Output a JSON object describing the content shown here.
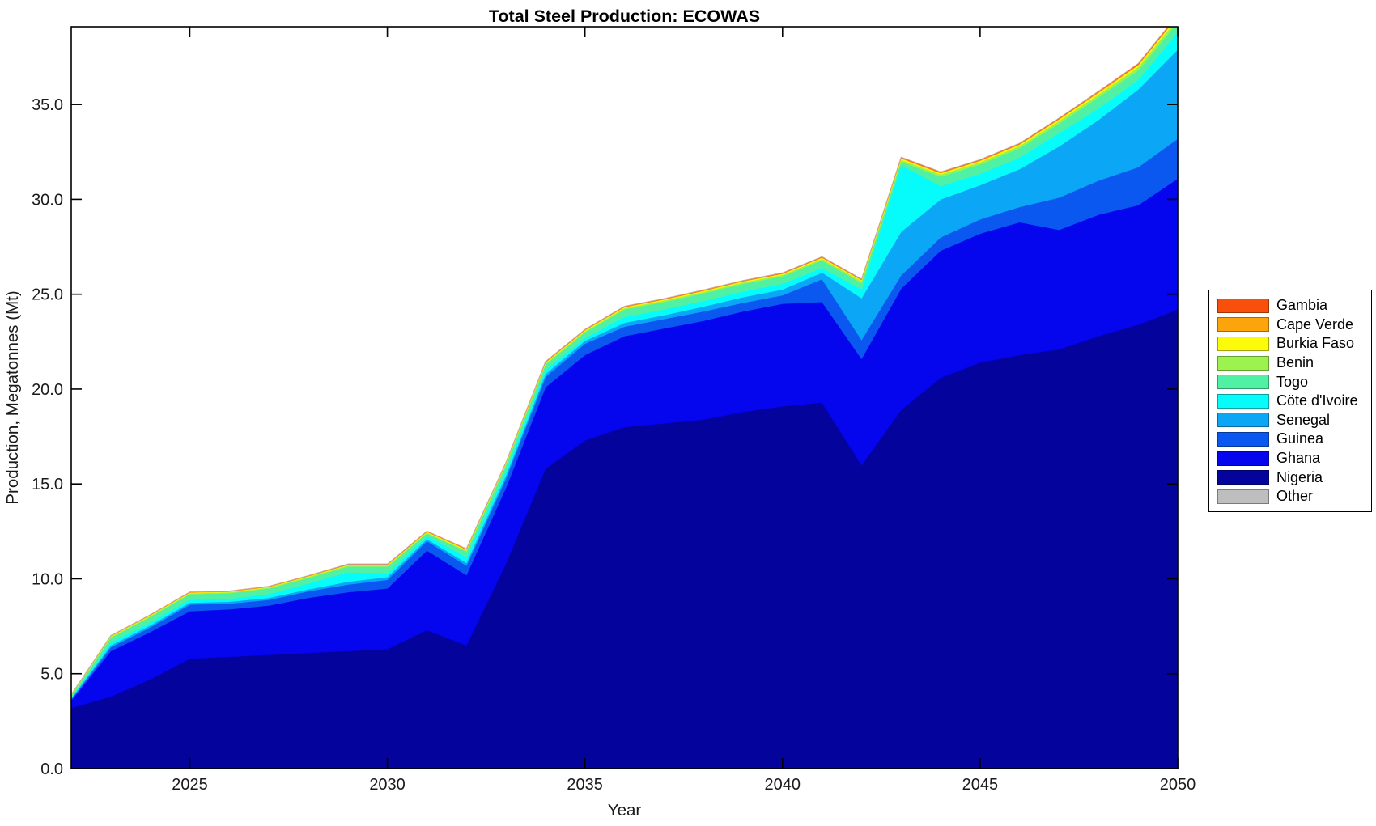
{
  "window": {
    "title": "Total Steel Production: ECOWAS"
  },
  "chart_data": {
    "type": "area",
    "stacked": true,
    "title": "Total Steel Production: ECOWAS",
    "xlabel": "Year",
    "ylabel": "Production, Megatonnes (Mt)",
    "background": "#FFFFFF",
    "axis_color": "#000000",
    "tick_label_color": "#1A1A1A",
    "grid": false,
    "xlim": [
      2022,
      2050
    ],
    "ylim": [
      0,
      39.1
    ],
    "x_ticks": [
      2025,
      2030,
      2035,
      2040,
      2045,
      2050
    ],
    "x_tick_labels": [
      "2025",
      "2030",
      "2035",
      "2040",
      "2045",
      "2050"
    ],
    "y_ticks": [
      0,
      5,
      10,
      15,
      20,
      25,
      30,
      35
    ],
    "y_tick_labels": [
      "0.0",
      "5.0",
      "10.0",
      "15.0",
      "20.0",
      "25.0",
      "30.0",
      "35.0"
    ],
    "legend_position": "right-outside",
    "legend_order_top_to_bottom": [
      "Gambia",
      "Cape Verde",
      "Burkia Faso",
      "Benin",
      "Togo",
      "Cöte d'Ivoire",
      "Senegal",
      "Guinea",
      "Ghana",
      "Nigeria",
      "Other"
    ],
    "x": [
      2022,
      2023,
      2024,
      2025,
      2026,
      2027,
      2028,
      2029,
      2030,
      2031,
      2032,
      2033,
      2034,
      2035,
      2036,
      2037,
      2038,
      2039,
      2040,
      2041,
      2042,
      2043,
      2044,
      2045,
      2046,
      2047,
      2048,
      2049,
      2050
    ],
    "series": [
      {
        "name": "Nigeria",
        "color": "#04049D",
        "values": [
          3.2,
          3.8,
          4.7,
          5.8,
          5.9,
          6.0,
          6.1,
          6.2,
          6.3,
          7.3,
          6.5,
          10.8,
          15.8,
          17.3,
          18.0,
          18.2,
          18.4,
          18.8,
          19.1,
          19.3,
          16.0,
          18.9,
          20.6,
          21.4,
          21.8,
          22.1,
          22.8,
          23.4,
          24.2
        ]
      },
      {
        "name": "Ghana",
        "color": "#0505EE",
        "values": [
          0.4,
          2.4,
          2.5,
          2.5,
          2.5,
          2.6,
          2.9,
          3.1,
          3.2,
          4.2,
          3.7,
          4.0,
          4.3,
          4.5,
          4.8,
          5.0,
          5.2,
          5.3,
          5.4,
          5.3,
          5.6,
          6.4,
          6.7,
          6.8,
          7.0,
          6.3,
          6.4,
          6.3,
          6.9
        ]
      },
      {
        "name": "Guinea",
        "color": "#0A58F0",
        "values": [
          0.05,
          0.2,
          0.25,
          0.35,
          0.3,
          0.3,
          0.35,
          0.4,
          0.45,
          0.5,
          0.5,
          0.5,
          0.55,
          0.6,
          0.5,
          0.5,
          0.5,
          0.45,
          0.45,
          1.2,
          1.0,
          0.7,
          0.7,
          0.75,
          0.8,
          1.7,
          1.8,
          2.0,
          2.1
        ]
      },
      {
        "name": "Senegal",
        "color": "#0BA6F6",
        "values": [
          0.05,
          0.1,
          0.1,
          0.1,
          0.1,
          0.1,
          0.1,
          0.15,
          0.15,
          0.1,
          0.15,
          0.15,
          0.15,
          0.15,
          0.2,
          0.2,
          0.25,
          0.3,
          0.3,
          0.35,
          2.2,
          2.3,
          2.0,
          1.8,
          2.0,
          2.7,
          3.2,
          4.1,
          4.7
        ]
      },
      {
        "name": "Cöte d'Ivoire",
        "color": "#06FBFB",
        "values": [
          0.05,
          0.15,
          0.15,
          0.15,
          0.15,
          0.2,
          0.3,
          0.5,
          0.2,
          0.15,
          0.3,
          0.25,
          0.2,
          0.15,
          0.3,
          0.3,
          0.3,
          0.3,
          0.3,
          0.25,
          0.45,
          3.5,
          0.7,
          0.6,
          0.6,
          0.7,
          0.6,
          0.5,
          0.9
        ]
      },
      {
        "name": "Togo",
        "color": "#50F1A4",
        "values": [
          0.08,
          0.25,
          0.3,
          0.3,
          0.3,
          0.3,
          0.3,
          0.3,
          0.35,
          0.15,
          0.3,
          0.3,
          0.3,
          0.3,
          0.4,
          0.4,
          0.4,
          0.4,
          0.4,
          0.4,
          0.35,
          0.2,
          0.5,
          0.5,
          0.5,
          0.5,
          0.6,
          0.5,
          0.55
        ]
      },
      {
        "name": "Benin",
        "color": "#9DF34D",
        "values": [
          0.03,
          0.05,
          0.05,
          0.05,
          0.05,
          0.05,
          0.06,
          0.06,
          0.06,
          0.05,
          0.06,
          0.06,
          0.06,
          0.06,
          0.08,
          0.08,
          0.08,
          0.08,
          0.08,
          0.08,
          0.1,
          0.1,
          0.12,
          0.12,
          0.12,
          0.14,
          0.15,
          0.18,
          0.2
        ]
      },
      {
        "name": "Burkia Faso",
        "color": "#FCFC0A",
        "values": [
          0.02,
          0.03,
          0.03,
          0.03,
          0.03,
          0.03,
          0.03,
          0.03,
          0.03,
          0.03,
          0.04,
          0.04,
          0.04,
          0.04,
          0.04,
          0.04,
          0.05,
          0.05,
          0.05,
          0.05,
          0.05,
          0.06,
          0.06,
          0.06,
          0.07,
          0.08,
          0.08,
          0.09,
          0.1
        ]
      },
      {
        "name": "Cape Verde",
        "color": "#FCA40C",
        "values": [
          0.01,
          0.02,
          0.02,
          0.02,
          0.02,
          0.02,
          0.02,
          0.02,
          0.02,
          0.02,
          0.02,
          0.02,
          0.03,
          0.03,
          0.03,
          0.03,
          0.03,
          0.03,
          0.03,
          0.03,
          0.03,
          0.04,
          0.04,
          0.04,
          0.04,
          0.04,
          0.05,
          0.05,
          0.05
        ]
      },
      {
        "name": "Gambia",
        "color": "#F8500B",
        "values": [
          0.01,
          0.01,
          0.01,
          0.01,
          0.01,
          0.01,
          0.01,
          0.02,
          0.02,
          0.02,
          0.02,
          0.02,
          0.02,
          0.02,
          0.02,
          0.02,
          0.02,
          0.02,
          0.02,
          0.02,
          0.02,
          0.03,
          0.03,
          0.03,
          0.03,
          0.03,
          0.03,
          0.04,
          0.04
        ]
      },
      {
        "name": "Other",
        "color": "#BEBEBE",
        "values": [
          0,
          0,
          0,
          0,
          0,
          0,
          0,
          0,
          0,
          0,
          0,
          0,
          0,
          0,
          0,
          0,
          0,
          0,
          0,
          0,
          0,
          0,
          0,
          0,
          0,
          0,
          0,
          0,
          0
        ]
      }
    ],
    "legend_colors": {
      "Gambia": "#F8500B",
      "Cape Verde": "#FCA40C",
      "Burkia Faso": "#FCFC0A",
      "Benin": "#9DF34D",
      "Togo": "#50F1A4",
      "Cöte d'Ivoire": "#06FBFB",
      "Senegal": "#0BA6F6",
      "Guinea": "#0A58F0",
      "Ghana": "#0505EE",
      "Nigeria": "#04049D",
      "Other": "#BEBEBE"
    }
  }
}
